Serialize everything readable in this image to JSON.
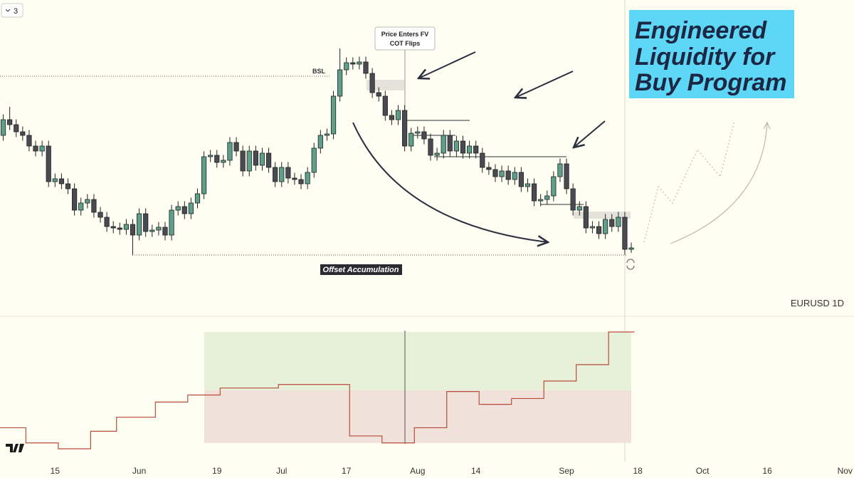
{
  "chart_data": {
    "type": "candlestick",
    "symbol": "EURUSD 1D",
    "colors": {
      "up": "#5e9f8c",
      "down": "#4a4a52"
    },
    "xlim": [
      -8.5,
      123.4
    ],
    "xticks": [
      {
        "value": 0,
        "label": "15"
      },
      {
        "value": 13,
        "label": "Jun"
      },
      {
        "value": 25,
        "label": "19"
      },
      {
        "value": 35,
        "label": "Jul"
      },
      {
        "value": 45,
        "label": "17"
      },
      {
        "value": 56,
        "label": "Aug"
      },
      {
        "value": 65,
        "label": "14"
      },
      {
        "value": 79,
        "label": "Sep"
      },
      {
        "value": 90,
        "label": "18"
      },
      {
        "value": 100,
        "label": "Oct"
      },
      {
        "value": 110,
        "label": "16"
      },
      {
        "value": 122,
        "label": "Nov"
      }
    ],
    "ylim": [
      1.0464,
      1.135
    ],
    "x": [
      -8,
      -7,
      -6,
      -5,
      -4,
      -3,
      -2,
      -1,
      0,
      1,
      2,
      3,
      4,
      5,
      6,
      7,
      8,
      9,
      10,
      11,
      12,
      13,
      14,
      15,
      16,
      17,
      18,
      19,
      20,
      21,
      22,
      23,
      24,
      25,
      26,
      27,
      28,
      29,
      30,
      31,
      32,
      33,
      34,
      35,
      36,
      37,
      38,
      39,
      40,
      41,
      42,
      43,
      44,
      45,
      46,
      47,
      48,
      49,
      50,
      51,
      52,
      53,
      54,
      55,
      56,
      57,
      58,
      59,
      60,
      61,
      62,
      63,
      64,
      65,
      66,
      67,
      68,
      69,
      70,
      71,
      72,
      73,
      74,
      75,
      76,
      77,
      78,
      79,
      80,
      81,
      82,
      83,
      84,
      85,
      86,
      87,
      88,
      89
    ],
    "candles": [
      [
        1.097,
        1.1029,
        1.0955,
        1.1014
      ],
      [
        1.1014,
        1.105,
        1.0985,
        1.1
      ],
      [
        1.1,
        1.1015,
        1.0965,
        1.098
      ],
      [
        1.098,
        1.0995,
        1.0955,
        1.097
      ],
      [
        1.097,
        1.0985,
        1.0925,
        1.094
      ],
      [
        1.094,
        1.0955,
        1.0911,
        1.0926
      ],
      [
        1.0926,
        1.0955,
        1.0911,
        1.094
      ],
      [
        1.094,
        1.0955,
        1.0825,
        1.084
      ],
      [
        1.084,
        1.0863,
        1.0825,
        1.0848
      ],
      [
        1.0848,
        1.0863,
        1.0819,
        1.0834
      ],
      [
        1.0834,
        1.0849,
        1.0805,
        1.082
      ],
      [
        1.082,
        1.0835,
        1.0745,
        1.076
      ],
      [
        1.076,
        1.0795,
        1.0745,
        1.078
      ],
      [
        1.078,
        1.0805,
        1.0765,
        1.079
      ],
      [
        1.079,
        1.0805,
        1.0739,
        1.0754
      ],
      [
        1.0754,
        1.0769,
        1.0725,
        1.074
      ],
      [
        1.074,
        1.0755,
        1.0699,
        1.0714
      ],
      [
        1.0714,
        1.0729,
        1.0695,
        1.071
      ],
      [
        1.071,
        1.0725,
        1.0691,
        1.0706
      ],
      [
        1.0706,
        1.0735,
        1.0691,
        1.072
      ],
      [
        1.072,
        1.0735,
        1.0634,
        1.069
      ],
      [
        1.069,
        1.0765,
        1.0675,
        1.075
      ],
      [
        1.075,
        1.0765,
        1.0685,
        1.07
      ],
      [
        1.07,
        1.0719,
        1.0685,
        1.0704
      ],
      [
        1.0704,
        1.0727,
        1.0689,
        1.0712
      ],
      [
        1.0712,
        1.0727,
        1.0675,
        1.069
      ],
      [
        1.069,
        1.0775,
        1.0675,
        1.076
      ],
      [
        1.076,
        1.0785,
        1.0745,
        1.077
      ],
      [
        1.077,
        1.0785,
        1.0735,
        1.075
      ],
      [
        1.075,
        1.0795,
        1.0735,
        1.078
      ],
      [
        1.078,
        1.0821,
        1.0765,
        1.0806
      ],
      [
        1.0806,
        1.0925,
        1.0791,
        1.091
      ],
      [
        1.091,
        1.0929,
        1.0895,
        1.0914
      ],
      [
        1.0914,
        1.0929,
        1.0879,
        1.0894
      ],
      [
        1.0894,
        1.0915,
        1.0879,
        1.09
      ],
      [
        1.09,
        1.0965,
        1.0885,
        1.095
      ],
      [
        1.095,
        1.0965,
        1.0911,
        1.0926
      ],
      [
        1.0926,
        1.0941,
        1.0855,
        1.087
      ],
      [
        1.087,
        1.0941,
        1.0855,
        1.0926
      ],
      [
        1.0926,
        1.0941,
        1.0871,
        1.0886
      ],
      [
        1.0886,
        1.0935,
        1.0871,
        1.092
      ],
      [
        1.092,
        1.0935,
        1.0865,
        1.088
      ],
      [
        1.088,
        1.0895,
        1.0825,
        1.084
      ],
      [
        1.084,
        1.0895,
        1.0825,
        1.088
      ],
      [
        1.088,
        1.0895,
        1.0835,
        1.085
      ],
      [
        1.085,
        1.0865,
        1.0831,
        1.0846
      ],
      [
        1.0846,
        1.0861,
        1.0819,
        1.0834
      ],
      [
        1.0834,
        1.0881,
        1.0819,
        1.0866
      ],
      [
        1.0866,
        1.0949,
        1.0851,
        1.0934
      ],
      [
        1.0934,
        1.0985,
        1.0919,
        1.097
      ],
      [
        1.097,
        1.0989,
        1.0955,
        1.0974
      ],
      [
        1.0974,
        1.1095,
        1.0959,
        1.108
      ],
      [
        1.108,
        1.1214,
        1.1065,
        1.1154
      ],
      [
        1.1154,
        1.1189,
        1.1139,
        1.1174
      ],
      [
        1.1174,
        1.1189,
        1.1155,
        1.117
      ],
      [
        1.117,
        1.1191,
        1.1155,
        1.1176
      ],
      [
        1.1176,
        1.1191,
        1.1129,
        1.1144
      ],
      [
        1.1144,
        1.1159,
        1.1075,
        1.109
      ],
      [
        1.109,
        1.1105,
        1.1065,
        1.108
      ],
      [
        1.108,
        1.1095,
        1.1011,
        1.1026
      ],
      [
        1.1026,
        1.1041,
        1.0999,
        1.1014
      ],
      [
        1.1014,
        1.1055,
        1.0999,
        1.104
      ],
      [
        1.104,
        1.1055,
        1.0925,
        1.094
      ],
      [
        1.094,
        1.0991,
        1.0925,
        1.0976
      ],
      [
        1.0976,
        1.0995,
        1.0961,
        1.098
      ],
      [
        1.098,
        1.0995,
        1.0945,
        1.096
      ],
      [
        1.096,
        1.0975,
        1.0899,
        1.0914
      ],
      [
        1.0914,
        1.0935,
        1.0899,
        1.092
      ],
      [
        1.092,
        1.0985,
        1.0905,
        1.097
      ],
      [
        1.097,
        1.0985,
        1.0911,
        1.0926
      ],
      [
        1.0926,
        1.0969,
        1.0911,
        1.0954
      ],
      [
        1.0954,
        1.0969,
        1.0905,
        1.092
      ],
      [
        1.092,
        1.0955,
        1.0905,
        1.094
      ],
      [
        1.094,
        1.0955,
        1.0905,
        1.092
      ],
      [
        1.092,
        1.0935,
        1.0865,
        1.088
      ],
      [
        1.088,
        1.0895,
        1.0859,
        1.0874
      ],
      [
        1.0874,
        1.0889,
        1.0839,
        1.0854
      ],
      [
        1.0854,
        1.0885,
        1.0839,
        1.087
      ],
      [
        1.087,
        1.0885,
        1.0831,
        1.0846
      ],
      [
        1.0846,
        1.0881,
        1.0831,
        1.0866
      ],
      [
        1.0866,
        1.0881,
        1.0811,
        1.0826
      ],
      [
        1.0826,
        1.0849,
        1.0811,
        1.0834
      ],
      [
        1.0834,
        1.0849,
        1.0771,
        1.0786
      ],
      [
        1.0786,
        1.0805,
        1.0771,
        1.079
      ],
      [
        1.079,
        1.0815,
        1.0775,
        1.08
      ],
      [
        1.08,
        1.0869,
        1.0785,
        1.0854
      ],
      [
        1.0854,
        1.0905,
        1.0839,
        1.089
      ],
      [
        1.089,
        1.0905,
        1.0805,
        1.082
      ],
      [
        1.082,
        1.0835,
        1.0745,
        1.076
      ],
      [
        1.076,
        1.0785,
        1.0745,
        1.077
      ],
      [
        1.077,
        1.0785,
        1.0695,
        1.071
      ],
      [
        1.071,
        1.0729,
        1.0695,
        1.0714
      ],
      [
        1.0714,
        1.0729,
        1.0679,
        1.0694
      ],
      [
        1.0694,
        1.0749,
        1.0679,
        1.0734
      ],
      [
        1.0734,
        1.0749,
        1.0699,
        1.0714
      ],
      [
        1.0714,
        1.0755,
        1.0699,
        1.074
      ],
      [
        1.074,
        1.0755,
        1.0635,
        1.065
      ],
      [
        1.065,
        1.0669,
        1.064,
        1.0654
      ]
    ],
    "levels": [
      {
        "label": "BSL",
        "value": 1.1136
      },
      {
        "label": "Offset Accumulation",
        "value": 1.0634
      }
    ],
    "indicator": {
      "type": "line",
      "color": "#b84c3a",
      "ylim": [
        -11,
        112.8
      ],
      "values": [
        18,
        18,
        18,
        18,
        5,
        5,
        5,
        5,
        5,
        0,
        0,
        0,
        0,
        0,
        15,
        15,
        15,
        15,
        27,
        27,
        27,
        27,
        27,
        27,
        40,
        40,
        40,
        40,
        40,
        46,
        46,
        46,
        46,
        46,
        52,
        52,
        52,
        52,
        52,
        52,
        52,
        52,
        52,
        55,
        55,
        55,
        55,
        55,
        55,
        55,
        55,
        55,
        55,
        55,
        11,
        11,
        11,
        11,
        11,
        5,
        5,
        5,
        5,
        5,
        18,
        18,
        18,
        18,
        18,
        49,
        49,
        49,
        49,
        49,
        38,
        38,
        38,
        38,
        38,
        43,
        43,
        43,
        43,
        43,
        58,
        58,
        58,
        58,
        58,
        72,
        72,
        72,
        72,
        72,
        100,
        100,
        100,
        100
      ],
      "zones": [
        {
          "from": 50,
          "to": 100,
          "color": "#e7f1da"
        },
        {
          "from": 5,
          "to": 50,
          "color": "#f1e1db"
        }
      ]
    }
  },
  "callout": [
    "Price Enters FV",
    "COT Flips"
  ],
  "headline": [
    "Engineered",
    "Liquidity for",
    "Buy Program"
  ],
  "toolbar": {
    "layouts": "3"
  }
}
